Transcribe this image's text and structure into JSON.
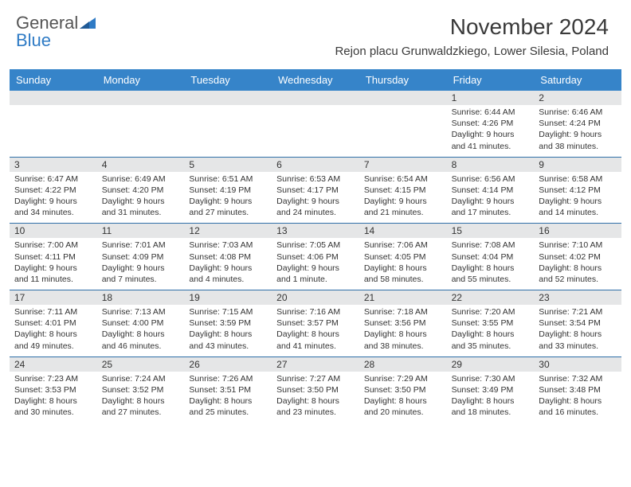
{
  "brand": {
    "line1": "General",
    "line2": "Blue",
    "tri_color": "#2f7bc5"
  },
  "title": "November 2024",
  "location": "Rejon placu Grunwaldzkiego, Lower Silesia, Poland",
  "colors": {
    "header_bg": "#3684c9",
    "header_fg": "#ffffff",
    "daynum_bg": "#e5e6e7",
    "rule": "#2f6fa8",
    "text": "#333333"
  },
  "day_names": [
    "Sunday",
    "Monday",
    "Tuesday",
    "Wednesday",
    "Thursday",
    "Friday",
    "Saturday"
  ],
  "weeks": [
    [
      null,
      null,
      null,
      null,
      null,
      {
        "n": "1",
        "sr": "Sunrise: 6:44 AM",
        "ss": "Sunset: 4:26 PM",
        "d1": "Daylight: 9 hours",
        "d2": "and 41 minutes."
      },
      {
        "n": "2",
        "sr": "Sunrise: 6:46 AM",
        "ss": "Sunset: 4:24 PM",
        "d1": "Daylight: 9 hours",
        "d2": "and 38 minutes."
      }
    ],
    [
      {
        "n": "3",
        "sr": "Sunrise: 6:47 AM",
        "ss": "Sunset: 4:22 PM",
        "d1": "Daylight: 9 hours",
        "d2": "and 34 minutes."
      },
      {
        "n": "4",
        "sr": "Sunrise: 6:49 AM",
        "ss": "Sunset: 4:20 PM",
        "d1": "Daylight: 9 hours",
        "d2": "and 31 minutes."
      },
      {
        "n": "5",
        "sr": "Sunrise: 6:51 AM",
        "ss": "Sunset: 4:19 PM",
        "d1": "Daylight: 9 hours",
        "d2": "and 27 minutes."
      },
      {
        "n": "6",
        "sr": "Sunrise: 6:53 AM",
        "ss": "Sunset: 4:17 PM",
        "d1": "Daylight: 9 hours",
        "d2": "and 24 minutes."
      },
      {
        "n": "7",
        "sr": "Sunrise: 6:54 AM",
        "ss": "Sunset: 4:15 PM",
        "d1": "Daylight: 9 hours",
        "d2": "and 21 minutes."
      },
      {
        "n": "8",
        "sr": "Sunrise: 6:56 AM",
        "ss": "Sunset: 4:14 PM",
        "d1": "Daylight: 9 hours",
        "d2": "and 17 minutes."
      },
      {
        "n": "9",
        "sr": "Sunrise: 6:58 AM",
        "ss": "Sunset: 4:12 PM",
        "d1": "Daylight: 9 hours",
        "d2": "and 14 minutes."
      }
    ],
    [
      {
        "n": "10",
        "sr": "Sunrise: 7:00 AM",
        "ss": "Sunset: 4:11 PM",
        "d1": "Daylight: 9 hours",
        "d2": "and 11 minutes."
      },
      {
        "n": "11",
        "sr": "Sunrise: 7:01 AM",
        "ss": "Sunset: 4:09 PM",
        "d1": "Daylight: 9 hours",
        "d2": "and 7 minutes."
      },
      {
        "n": "12",
        "sr": "Sunrise: 7:03 AM",
        "ss": "Sunset: 4:08 PM",
        "d1": "Daylight: 9 hours",
        "d2": "and 4 minutes."
      },
      {
        "n": "13",
        "sr": "Sunrise: 7:05 AM",
        "ss": "Sunset: 4:06 PM",
        "d1": "Daylight: 9 hours",
        "d2": "and 1 minute."
      },
      {
        "n": "14",
        "sr": "Sunrise: 7:06 AM",
        "ss": "Sunset: 4:05 PM",
        "d1": "Daylight: 8 hours",
        "d2": "and 58 minutes."
      },
      {
        "n": "15",
        "sr": "Sunrise: 7:08 AM",
        "ss": "Sunset: 4:04 PM",
        "d1": "Daylight: 8 hours",
        "d2": "and 55 minutes."
      },
      {
        "n": "16",
        "sr": "Sunrise: 7:10 AM",
        "ss": "Sunset: 4:02 PM",
        "d1": "Daylight: 8 hours",
        "d2": "and 52 minutes."
      }
    ],
    [
      {
        "n": "17",
        "sr": "Sunrise: 7:11 AM",
        "ss": "Sunset: 4:01 PM",
        "d1": "Daylight: 8 hours",
        "d2": "and 49 minutes."
      },
      {
        "n": "18",
        "sr": "Sunrise: 7:13 AM",
        "ss": "Sunset: 4:00 PM",
        "d1": "Daylight: 8 hours",
        "d2": "and 46 minutes."
      },
      {
        "n": "19",
        "sr": "Sunrise: 7:15 AM",
        "ss": "Sunset: 3:59 PM",
        "d1": "Daylight: 8 hours",
        "d2": "and 43 minutes."
      },
      {
        "n": "20",
        "sr": "Sunrise: 7:16 AM",
        "ss": "Sunset: 3:57 PM",
        "d1": "Daylight: 8 hours",
        "d2": "and 41 minutes."
      },
      {
        "n": "21",
        "sr": "Sunrise: 7:18 AM",
        "ss": "Sunset: 3:56 PM",
        "d1": "Daylight: 8 hours",
        "d2": "and 38 minutes."
      },
      {
        "n": "22",
        "sr": "Sunrise: 7:20 AM",
        "ss": "Sunset: 3:55 PM",
        "d1": "Daylight: 8 hours",
        "d2": "and 35 minutes."
      },
      {
        "n": "23",
        "sr": "Sunrise: 7:21 AM",
        "ss": "Sunset: 3:54 PM",
        "d1": "Daylight: 8 hours",
        "d2": "and 33 minutes."
      }
    ],
    [
      {
        "n": "24",
        "sr": "Sunrise: 7:23 AM",
        "ss": "Sunset: 3:53 PM",
        "d1": "Daylight: 8 hours",
        "d2": "and 30 minutes."
      },
      {
        "n": "25",
        "sr": "Sunrise: 7:24 AM",
        "ss": "Sunset: 3:52 PM",
        "d1": "Daylight: 8 hours",
        "d2": "and 27 minutes."
      },
      {
        "n": "26",
        "sr": "Sunrise: 7:26 AM",
        "ss": "Sunset: 3:51 PM",
        "d1": "Daylight: 8 hours",
        "d2": "and 25 minutes."
      },
      {
        "n": "27",
        "sr": "Sunrise: 7:27 AM",
        "ss": "Sunset: 3:50 PM",
        "d1": "Daylight: 8 hours",
        "d2": "and 23 minutes."
      },
      {
        "n": "28",
        "sr": "Sunrise: 7:29 AM",
        "ss": "Sunset: 3:50 PM",
        "d1": "Daylight: 8 hours",
        "d2": "and 20 minutes."
      },
      {
        "n": "29",
        "sr": "Sunrise: 7:30 AM",
        "ss": "Sunset: 3:49 PM",
        "d1": "Daylight: 8 hours",
        "d2": "and 18 minutes."
      },
      {
        "n": "30",
        "sr": "Sunrise: 7:32 AM",
        "ss": "Sunset: 3:48 PM",
        "d1": "Daylight: 8 hours",
        "d2": "and 16 minutes."
      }
    ]
  ]
}
